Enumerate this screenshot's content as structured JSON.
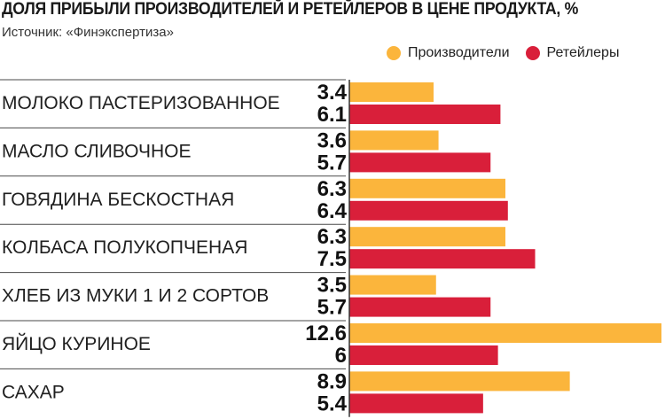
{
  "title": "ДОЛЯ ПРИБЫЛИ ПРОИЗВОДИТЕЛЕЙ И РЕТЕЙЛЕРОВ В ЦЕНЕ ПРОДУКТА, %",
  "subtitle": "Источник: «Финэкспертиза»",
  "colors": {
    "producers": "#fbb53c",
    "retailers": "#d91f3a"
  },
  "chart_data": {
    "type": "bar",
    "orientation": "horizontal",
    "title": "ДОЛЯ ПРИБЫЛИ ПРОИЗВОДИТЕЛЕЙ И РЕТЕЙЛЕРОВ В ЦЕНЕ ПРОДУКТА, %",
    "subtitle": "Источник: «Финэкспертиза»",
    "legend_position": "top-right",
    "categories": [
      "МОЛОКО ПАСТЕРИЗОВАННОЕ",
      "МАСЛО СЛИВОЧНОЕ",
      "ГОВЯДИНА БЕСКОСТНАЯ",
      "КОЛБАСА ПОЛУКОПЧЕНАЯ",
      "ХЛЕБ ИЗ МУКИ 1 И 2 СОРТОВ",
      "ЯЙЦО КУРИНОЕ",
      "САХАР"
    ],
    "series": [
      {
        "name": "Производители",
        "values": [
          3.4,
          3.6,
          6.3,
          6.3,
          3.5,
          12.6,
          8.9
        ],
        "labels": [
          "3.4",
          "3.6",
          "6.3",
          "6.3",
          "3.5",
          "12.6",
          "8.9"
        ]
      },
      {
        "name": "Ретейлеры",
        "values": [
          6.1,
          5.7,
          6.4,
          7.5,
          5.7,
          6,
          5.4
        ],
        "labels": [
          "6.1",
          "5.7",
          "6.4",
          "7.5",
          "5.7",
          "6",
          "5.4"
        ]
      }
    ],
    "xlim": [
      0,
      12.6
    ]
  }
}
